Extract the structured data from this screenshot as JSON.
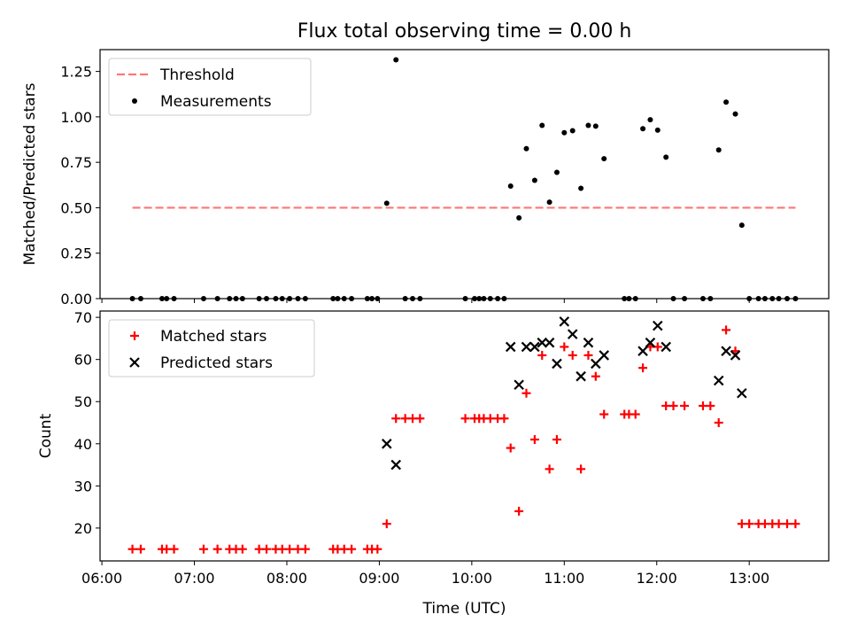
{
  "title": "Flux total observing time = 0.00 h",
  "chart_data": [
    {
      "type": "scatter",
      "ylabel": "Matched/Predicted stars",
      "xlim": [
        5.98,
        13.86
      ],
      "ylim": [
        0,
        1.37
      ],
      "yticks": [
        {
          "v": 0,
          "label": "0.00"
        },
        {
          "v": 0.25,
          "label": "0.25"
        },
        {
          "v": 0.5,
          "label": "0.50"
        },
        {
          "v": 0.75,
          "label": "0.75"
        },
        {
          "v": 1.0,
          "label": "1.00"
        },
        {
          "v": 1.25,
          "label": "1.25"
        }
      ],
      "legend": {
        "placement": "upper-left",
        "entries": [
          "Threshold",
          "Measurements"
        ]
      },
      "series": [
        {
          "name": "Threshold",
          "kind": "dashed-line",
          "color": "#ff7575",
          "x": [
            6.33,
            13.5
          ],
          "y": [
            0.5,
            0.5
          ]
        },
        {
          "name": "Measurements",
          "kind": "dot",
          "color": "#000000",
          "x": [
            6.33,
            6.42,
            6.65,
            6.7,
            6.78,
            7.1,
            7.25,
            7.38,
            7.45,
            7.52,
            7.7,
            7.78,
            7.88,
            7.95,
            8.03,
            8.12,
            8.2,
            8.5,
            8.55,
            8.62,
            8.7,
            8.87,
            8.92,
            8.98,
            9.08,
            9.18,
            9.28,
            9.36,
            9.44,
            9.93,
            10.03,
            10.08,
            10.13,
            10.2,
            10.28,
            10.35,
            10.42,
            10.51,
            10.59,
            10.68,
            10.76,
            10.84,
            10.92,
            11.0,
            11.09,
            11.18,
            11.26,
            11.34,
            11.43,
            11.65,
            11.7,
            11.77,
            11.85,
            11.93,
            12.01,
            12.1,
            12.18,
            12.3,
            12.5,
            12.58,
            12.67,
            12.75,
            12.85,
            12.92,
            13.0,
            13.1,
            13.17,
            13.25,
            13.32,
            13.41,
            13.5
          ],
          "y": [
            0,
            0,
            0,
            0,
            0,
            0,
            0,
            0,
            0,
            0,
            0,
            0,
            0,
            0,
            0,
            0,
            0,
            0,
            0,
            0,
            0,
            0,
            0,
            0,
            0.525,
            1.314,
            0,
            0,
            0,
            0,
            0,
            0,
            0,
            0,
            0,
            0,
            0.619,
            0.444,
            0.825,
            0.651,
            0.953,
            0.531,
            0.695,
            0.913,
            0.924,
            0.607,
            0.953,
            0.949,
            0.77,
            0,
            0,
            0,
            0.935,
            0.984,
            0.927,
            0.778,
            0,
            0,
            0,
            0,
            0.818,
            1.081,
            1.016,
            0.404,
            0,
            0,
            0,
            0,
            0,
            0,
            0
          ]
        }
      ]
    },
    {
      "type": "scatter",
      "xlabel": "Time (UTC)",
      "ylabel": "Count",
      "xlim": [
        5.98,
        13.86
      ],
      "ylim": [
        12.2,
        71.5
      ],
      "xticks": [
        {
          "v": 6,
          "label": "06:00"
        },
        {
          "v": 7,
          "label": "07:00"
        },
        {
          "v": 8,
          "label": "08:00"
        },
        {
          "v": 9,
          "label": "09:00"
        },
        {
          "v": 10,
          "label": "10:00"
        },
        {
          "v": 11,
          "label": "11:00"
        },
        {
          "v": 12,
          "label": "12:00"
        },
        {
          "v": 13,
          "label": "13:00"
        }
      ],
      "yticks": [
        {
          "v": 20,
          "label": "20"
        },
        {
          "v": 30,
          "label": "30"
        },
        {
          "v": 40,
          "label": "40"
        },
        {
          "v": 50,
          "label": "50"
        },
        {
          "v": 60,
          "label": "60"
        },
        {
          "v": 70,
          "label": "70"
        }
      ],
      "legend": {
        "placement": "upper-left",
        "entries": [
          "Matched stars",
          "Predicted stars"
        ]
      },
      "series": [
        {
          "name": "Matched stars",
          "marker": "plus",
          "color": "#ff0000",
          "x": [
            6.33,
            6.42,
            6.65,
            6.7,
            6.78,
            7.1,
            7.25,
            7.38,
            7.45,
            7.52,
            7.7,
            7.78,
            7.88,
            7.95,
            8.03,
            8.12,
            8.2,
            8.5,
            8.55,
            8.62,
            8.7,
            8.87,
            8.92,
            8.98,
            9.08,
            9.18,
            9.28,
            9.36,
            9.44,
            9.93,
            10.03,
            10.08,
            10.13,
            10.2,
            10.28,
            10.35,
            10.42,
            10.51,
            10.59,
            10.68,
            10.76,
            10.84,
            10.92,
            11.0,
            11.09,
            11.18,
            11.26,
            11.34,
            11.43,
            11.65,
            11.7,
            11.77,
            11.85,
            11.93,
            12.01,
            12.1,
            12.18,
            12.3,
            12.5,
            12.58,
            12.67,
            12.75,
            12.85,
            12.92,
            13.0,
            13.1,
            13.17,
            13.25,
            13.32,
            13.41,
            13.5
          ],
          "y": [
            15,
            15,
            15,
            15,
            15,
            15,
            15,
            15,
            15,
            15,
            15,
            15,
            15,
            15,
            15,
            15,
            15,
            15,
            15,
            15,
            15,
            15,
            15,
            15,
            21,
            46,
            46,
            46,
            46,
            46,
            46,
            46,
            46,
            46,
            46,
            46,
            39,
            24,
            52,
            41,
            61,
            34,
            41,
            63,
            61,
            34,
            61,
            56,
            47,
            47,
            47,
            47,
            58,
            63,
            63,
            49,
            49,
            49,
            49,
            49,
            45,
            67,
            62,
            21,
            21,
            21,
            21,
            21,
            21,
            21,
            21
          ]
        },
        {
          "name": "Predicted stars",
          "marker": "x",
          "color": "#000000",
          "x": [
            9.08,
            9.18,
            10.42,
            10.51,
            10.59,
            10.68,
            10.76,
            10.84,
            10.92,
            11.0,
            11.09,
            11.18,
            11.26,
            11.34,
            11.43,
            11.85,
            11.93,
            12.01,
            12.1,
            12.67,
            12.75,
            12.85,
            12.92
          ],
          "y": [
            40,
            35,
            63,
            54,
            63,
            63,
            64,
            64,
            59,
            69,
            66,
            56,
            64,
            59,
            61,
            62,
            64,
            68,
            63,
            55,
            62,
            61,
            52
          ]
        }
      ]
    }
  ]
}
